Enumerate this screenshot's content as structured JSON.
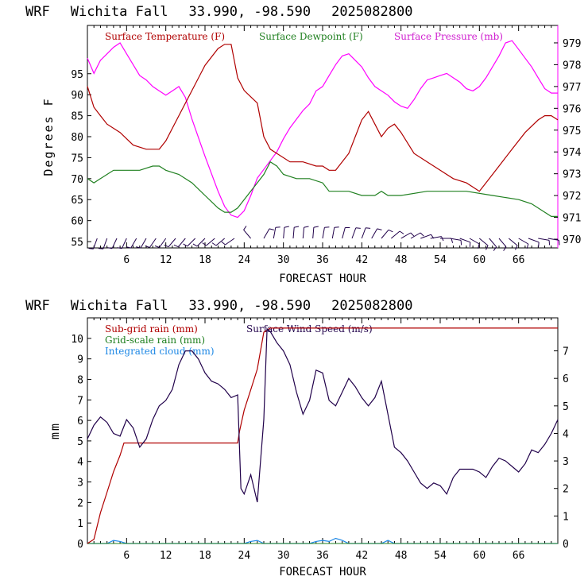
{
  "chart_data": [
    {
      "type": "line",
      "title": {
        "model": "WRF",
        "station": "Wichita Fall",
        "coords": "33.990, -98.590",
        "init": "2025082800"
      },
      "xlabel": "FORECAST HOUR",
      "ylabel": "Degrees F",
      "xlim": [
        0,
        72
      ],
      "ylim": [
        53.5,
        106.5
      ],
      "xticks": [
        "6",
        "12",
        "18",
        "24",
        "30",
        "36",
        "42",
        "48",
        "54",
        "60",
        "66"
      ],
      "yticks": [
        "55",
        "60",
        "65",
        "70",
        "75",
        "80",
        "85",
        "90",
        "95"
      ],
      "y2lim": [
        969.6,
        979.8
      ],
      "y2ticks": [
        "970",
        "971",
        "972",
        "973",
        "974",
        "975",
        "976",
        "977",
        "978",
        "979"
      ],
      "series": [
        {
          "name": "Surface Temperature (F)",
          "color": "#b00000",
          "axis": "left",
          "x": [
            0,
            1,
            2,
            3,
            5,
            7,
            9,
            11,
            12,
            14,
            16,
            18,
            20,
            21,
            22,
            23,
            24,
            26,
            27,
            28,
            29,
            31,
            33,
            35,
            36,
            37,
            38,
            40,
            42,
            43,
            44,
            45,
            46,
            47,
            48,
            50,
            52,
            54,
            56,
            58,
            59,
            60,
            61,
            63,
            65,
            67,
            69,
            70,
            71,
            72
          ],
          "values": [
            92,
            87,
            85,
            83,
            81,
            78,
            77,
            77,
            79,
            85,
            91,
            97,
            101,
            102,
            102,
            94,
            91,
            88,
            80,
            77,
            76,
            74,
            74,
            73,
            73,
            72,
            72,
            76,
            84,
            86,
            83,
            80,
            82,
            83,
            81,
            76,
            74,
            72,
            70,
            69,
            68,
            67,
            69,
            73,
            77,
            81,
            84,
            85,
            85,
            84
          ]
        },
        {
          "name": "Surface Dewpoint (F)",
          "color": "#208020",
          "axis": "left",
          "x": [
            0,
            1,
            2,
            3,
            4,
            6,
            8,
            10,
            11,
            12,
            14,
            16,
            18,
            20,
            21,
            22,
            23,
            24,
            26,
            27,
            28,
            29,
            30,
            32,
            34,
            36,
            37,
            38,
            40,
            42,
            44,
            45,
            46,
            48,
            52,
            54,
            58,
            62,
            66,
            68,
            70,
            71,
            72
          ],
          "values": [
            70,
            69,
            70,
            71,
            72,
            72,
            72,
            73,
            73,
            72,
            71,
            69,
            66,
            63,
            62,
            62,
            63,
            65,
            69,
            71,
            74,
            73,
            71,
            70,
            70,
            69,
            67,
            67,
            67,
            66,
            66,
            67,
            66,
            66,
            67,
            67,
            67,
            66,
            65,
            64,
            62,
            61,
            61
          ]
        },
        {
          "name": "Surface Pressure (mb)",
          "color": "#ff00ff",
          "axis": "right",
          "x": [
            0,
            1,
            2,
            3,
            4,
            5,
            6,
            7,
            8,
            9,
            10,
            11,
            12,
            13,
            14,
            15,
            16,
            18,
            20,
            21,
            22,
            23,
            24,
            25,
            26,
            27,
            28,
            29,
            30,
            31,
            32,
            33,
            34,
            35,
            36,
            37,
            38,
            39,
            40,
            41,
            42,
            43,
            44,
            45,
            46,
            47,
            48,
            49,
            50,
            51,
            52,
            53,
            54,
            55,
            56,
            57,
            58,
            59,
            60,
            61,
            62,
            63,
            64,
            65,
            66,
            67,
            68,
            69,
            70,
            71,
            72
          ],
          "values": [
            978.3,
            977.6,
            978.2,
            978.5,
            978.8,
            979.0,
            978.5,
            978.0,
            977.5,
            977.3,
            977.0,
            976.8,
            976.6,
            976.8,
            977.0,
            976.5,
            975.5,
            973.8,
            972.2,
            971.5,
            971.1,
            971.0,
            971.3,
            972.0,
            972.8,
            973.2,
            973.6,
            974.0,
            974.6,
            975.1,
            975.5,
            975.9,
            976.2,
            976.8,
            977.0,
            977.5,
            978.0,
            978.4,
            978.5,
            978.2,
            977.9,
            977.4,
            977.0,
            976.8,
            976.6,
            976.3,
            976.1,
            976.0,
            976.4,
            976.9,
            977.3,
            977.4,
            977.5,
            977.6,
            977.4,
            977.2,
            976.9,
            976.8,
            977.0,
            977.4,
            977.9,
            978.4,
            979.0,
            979.1,
            978.7,
            978.3,
            977.9,
            977.4,
            976.9,
            976.7,
            976.7
          ]
        }
      ],
      "wind_barbs": {
        "hours": [
          1.5,
          3,
          4.5,
          6,
          7.5,
          9,
          10.5,
          12,
          13.5,
          15,
          16.5,
          18,
          19.5,
          21,
          22.5,
          25,
          27,
          28.5,
          30,
          31.5,
          33,
          34.5,
          36,
          37.5,
          39,
          40.5,
          42,
          43.5,
          45,
          46.5,
          48,
          49.5,
          51,
          52.5,
          54,
          55.5,
          57,
          58.5,
          60,
          61.5,
          63,
          64.5,
          66,
          67.5,
          69,
          70.5
        ],
        "dir_deg": [
          200,
          200,
          205,
          205,
          210,
          210,
          215,
          215,
          220,
          220,
          225,
          225,
          230,
          230,
          235,
          320,
          30,
          10,
          5,
          5,
          5,
          5,
          10,
          10,
          15,
          20,
          20,
          30,
          40,
          50,
          60,
          60,
          70,
          80,
          90,
          100,
          110,
          120,
          130,
          140,
          140,
          130,
          120,
          110,
          100,
          100
        ]
      }
    },
    {
      "type": "line",
      "title": {
        "model": "WRF",
        "station": "Wichita Fall",
        "coords": "33.990, -98.590",
        "init": "2025082800"
      },
      "xlabel": "FORECAST HOUR",
      "ylabel": "mm",
      "xlim": [
        0,
        72
      ],
      "ylim": [
        0,
        11
      ],
      "xticks": [
        "6",
        "12",
        "18",
        "24",
        "30",
        "36",
        "42",
        "48",
        "54",
        "60",
        "66"
      ],
      "yticks": [
        "0",
        "1",
        "2",
        "3",
        "4",
        "5",
        "6",
        "7",
        "8",
        "9",
        "10"
      ],
      "y2lim": [
        0,
        8.2
      ],
      "y2ticks": [
        "0",
        "1",
        "2",
        "3",
        "4",
        "5",
        "6",
        "7"
      ],
      "series": [
        {
          "name": "Sub-grid rain (mm)",
          "color": "#b00000",
          "axis": "left",
          "x": [
            0,
            1,
            2,
            3,
            4,
            5,
            5.6,
            23,
            23.3,
            24,
            25,
            26,
            27,
            28,
            72
          ],
          "values": [
            0,
            0.2,
            1.5,
            2.5,
            3.5,
            4.3,
            4.9,
            4.9,
            5.5,
            6.5,
            7.5,
            8.5,
            10.3,
            10.5,
            10.5
          ]
        },
        {
          "name": "Grid-scale rain (mm)",
          "color": "#208020",
          "axis": "left",
          "x": [
            0,
            72
          ],
          "values": [
            0,
            0
          ]
        },
        {
          "name": "Integrated cloud (mm)",
          "color": "#1e88e5",
          "axis": "left",
          "x": [
            0,
            3,
            4,
            5,
            6,
            24,
            25,
            26,
            27,
            34,
            35,
            36,
            37,
            38,
            39,
            40,
            45,
            46,
            47,
            72
          ],
          "values": [
            0,
            0,
            0.15,
            0.1,
            0,
            0,
            0.1,
            0.15,
            0,
            0,
            0.1,
            0.15,
            0.1,
            0.25,
            0.15,
            0,
            0,
            0.15,
            0,
            0
          ]
        },
        {
          "name": "Surface Wind Speed (m/s)",
          "color": "#20004a",
          "axis": "right",
          "x": [
            0,
            1,
            2,
            3,
            4,
            5,
            6,
            7,
            8,
            9,
            10,
            11,
            12,
            13,
            14,
            15,
            16,
            17,
            18,
            19,
            20,
            21,
            22,
            23,
            23.5,
            24,
            25,
            26,
            27,
            27.5,
            28,
            29,
            30,
            31,
            32,
            33,
            34,
            35,
            36,
            37,
            38,
            39,
            40,
            41,
            42,
            43,
            44,
            45,
            46,
            47,
            48,
            49,
            50,
            51,
            52,
            53,
            54,
            55,
            56,
            57,
            58,
            59,
            60,
            61,
            62,
            63,
            64,
            65,
            66,
            67,
            68,
            69,
            70,
            71,
            72
          ],
          "values": [
            3.8,
            4.3,
            4.6,
            4.4,
            4.0,
            3.9,
            4.5,
            4.2,
            3.5,
            3.8,
            4.5,
            5.0,
            5.2,
            5.6,
            6.5,
            7.0,
            7.0,
            6.7,
            6.2,
            5.9,
            5.8,
            5.6,
            5.3,
            5.4,
            2.0,
            1.8,
            2.5,
            1.5,
            4.5,
            7.8,
            7.7,
            7.3,
            7.0,
            6.5,
            5.5,
            4.7,
            5.2,
            6.3,
            6.2,
            5.2,
            5.0,
            5.5,
            6.0,
            5.7,
            5.3,
            5.0,
            5.3,
            5.9,
            4.7,
            3.5,
            3.3,
            3.0,
            2.6,
            2.2,
            2.0,
            2.2,
            2.1,
            1.8,
            2.4,
            2.7,
            2.7,
            2.7,
            2.6,
            2.4,
            2.8,
            3.1,
            3.0,
            2.8,
            2.6,
            2.9,
            3.4,
            3.3,
            3.6,
            4.0,
            4.5
          ]
        }
      ]
    }
  ]
}
